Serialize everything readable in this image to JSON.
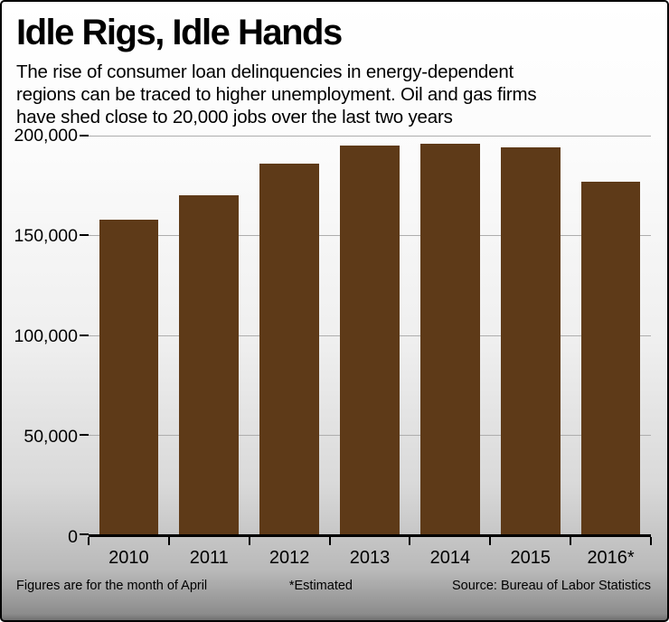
{
  "header": {
    "title": "Idle Rigs, Idle Hands",
    "subtitle": "The rise of consumer loan delinquencies in energy-dependent regions can be traced to higher unemployment. Oil and gas firms have shed close to 20,000 jobs over the last two years"
  },
  "chart_data": {
    "type": "bar",
    "title": "Idle Rigs, Idle Hands",
    "categories": [
      "2010",
      "2011",
      "2012",
      "2013",
      "2014",
      "2015",
      "2016*"
    ],
    "values": [
      158000,
      170000,
      186000,
      195000,
      196000,
      194000,
      177000
    ],
    "ylim": [
      0,
      200000
    ],
    "ytick_interval": 50000,
    "ytick_labels": [
      "0",
      "50,000",
      "100,000",
      "150,000",
      "200,000"
    ],
    "grid": true,
    "legend_position": "none",
    "bar_color": "#5e3a18",
    "xlabel": "",
    "ylabel": ""
  },
  "footer": {
    "note_april": "Figures are for the month of April",
    "note_estimated": "*Estimated",
    "note_source": "Source: Bureau of Labor Statistics"
  },
  "colors": {
    "bar": "#5e3a18",
    "gridline": "#aeaeae",
    "axis": "#000000",
    "text": "#000000",
    "background_top": "#ffffff",
    "background_bottom": "#6f6f6f"
  }
}
